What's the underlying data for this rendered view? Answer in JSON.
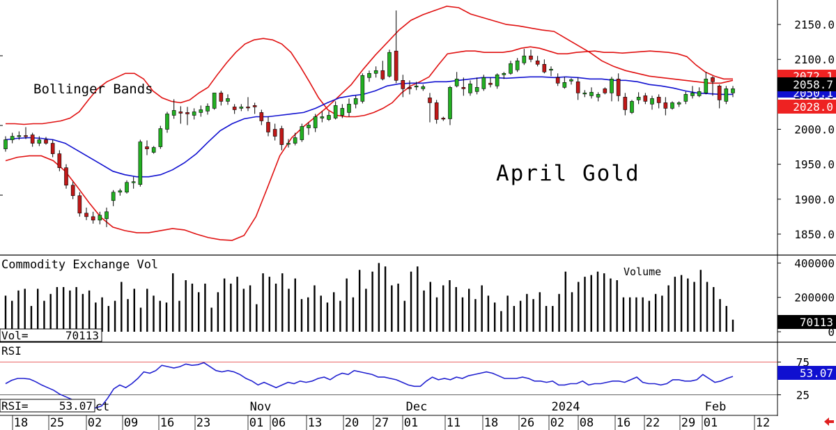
{
  "chart_data": [
    {
      "type": "candlestick",
      "title": "April Gold",
      "subtitle": "Bollinger Bands",
      "ylim": [
        1820,
        2185
      ],
      "y_ticks": [
        "2150.0",
        "2100.0",
        "2050.0",
        "2000.0",
        "1950.0",
        "1900.0",
        "1850.0"
      ],
      "y_tick_values": [
        2150,
        2100,
        2050,
        2000,
        1950,
        1900,
        1850
      ],
      "last_price": "2058.7",
      "upper_band_last": "2072.1",
      "lower_band_last": "2028.0",
      "middle_band_last": "2050.1",
      "colors": {
        "up": "#22b022",
        "down": "#c01818",
        "upper_band": "#e01010",
        "lower_band": "#e01010",
        "middle_band": "#1010d0",
        "flag_red": "#ee2222",
        "flag_black": "#000000"
      },
      "candles": [
        {
          "o": 1972,
          "h": 1990,
          "l": 1968,
          "c": 1985
        },
        {
          "o": 1985,
          "h": 1995,
          "l": 1980,
          "c": 1990
        },
        {
          "o": 1990,
          "h": 1997,
          "l": 1985,
          "c": 1991
        },
        {
          "o": 1991,
          "h": 2003,
          "l": 1986,
          "c": 1990
        },
        {
          "o": 1992,
          "h": 1995,
          "l": 1975,
          "c": 1980
        },
        {
          "o": 1980,
          "h": 1990,
          "l": 1976,
          "c": 1985
        },
        {
          "o": 1985,
          "h": 1989,
          "l": 1978,
          "c": 1980
        },
        {
          "o": 1980,
          "h": 1985,
          "l": 1960,
          "c": 1965
        },
        {
          "o": 1965,
          "h": 1970,
          "l": 1940,
          "c": 1945
        },
        {
          "o": 1945,
          "h": 1950,
          "l": 1915,
          "c": 1920
        },
        {
          "o": 1920,
          "h": 1925,
          "l": 1900,
          "c": 1905
        },
        {
          "o": 1905,
          "h": 1910,
          "l": 1875,
          "c": 1880
        },
        {
          "o": 1880,
          "h": 1888,
          "l": 1870,
          "c": 1875
        },
        {
          "o": 1875,
          "h": 1882,
          "l": 1865,
          "c": 1870
        },
        {
          "o": 1870,
          "h": 1882,
          "l": 1864,
          "c": 1877
        },
        {
          "o": 1872,
          "h": 1888,
          "l": 1860,
          "c": 1882
        },
        {
          "o": 1898,
          "h": 1913,
          "l": 1890,
          "c": 1910
        },
        {
          "o": 1910,
          "h": 1915,
          "l": 1905,
          "c": 1912
        },
        {
          "o": 1910,
          "h": 1927,
          "l": 1908,
          "c": 1924
        },
        {
          "o": 1924,
          "h": 1932,
          "l": 1915,
          "c": 1925
        },
        {
          "o": 1921,
          "h": 1985,
          "l": 1918,
          "c": 1982
        },
        {
          "o": 1975,
          "h": 1984,
          "l": 1963,
          "c": 1972
        },
        {
          "o": 1967,
          "h": 1976,
          "l": 1965,
          "c": 1974
        },
        {
          "o": 1975,
          "h": 2005,
          "l": 1972,
          "c": 2001
        },
        {
          "o": 2000,
          "h": 2025,
          "l": 1995,
          "c": 2022
        },
        {
          "o": 2020,
          "h": 2043,
          "l": 2015,
          "c": 2027
        },
        {
          "o": 2025,
          "h": 2033,
          "l": 2008,
          "c": 2023
        },
        {
          "o": 2024,
          "h": 2032,
          "l": 2006,
          "c": 2022
        },
        {
          "o": 2020,
          "h": 2030,
          "l": 2014,
          "c": 2025
        },
        {
          "o": 2024,
          "h": 2034,
          "l": 2018,
          "c": 2028
        },
        {
          "o": 2026,
          "h": 2037,
          "l": 2021,
          "c": 2033
        },
        {
          "o": 2030,
          "h": 2052,
          "l": 2028,
          "c": 2052
        },
        {
          "o": 2052,
          "h": 2055,
          "l": 2034,
          "c": 2040
        },
        {
          "o": 2040,
          "h": 2050,
          "l": 2035,
          "c": 2044
        },
        {
          "o": 2032,
          "h": 2036,
          "l": 2022,
          "c": 2028
        },
        {
          "o": 2030,
          "h": 2036,
          "l": 2026,
          "c": 2032
        },
        {
          "o": 2032,
          "h": 2046,
          "l": 2026,
          "c": 2031
        },
        {
          "o": 2034,
          "h": 2038,
          "l": 2022,
          "c": 2032
        },
        {
          "o": 2024,
          "h": 2028,
          "l": 2006,
          "c": 2012
        },
        {
          "o": 2010,
          "h": 2018,
          "l": 1990,
          "c": 1996
        },
        {
          "o": 2000,
          "h": 2008,
          "l": 1984,
          "c": 1990
        },
        {
          "o": 2001,
          "h": 2005,
          "l": 1970,
          "c": 1978
        },
        {
          "o": 1980,
          "h": 1986,
          "l": 1974,
          "c": 1980
        },
        {
          "o": 1980,
          "h": 1995,
          "l": 1977,
          "c": 1988
        },
        {
          "o": 1985,
          "h": 2008,
          "l": 1982,
          "c": 2004
        },
        {
          "o": 2002,
          "h": 2010,
          "l": 1992,
          "c": 2006
        },
        {
          "o": 2002,
          "h": 2022,
          "l": 1996,
          "c": 2018
        },
        {
          "o": 2016,
          "h": 2026,
          "l": 2010,
          "c": 2018
        },
        {
          "o": 2014,
          "h": 2026,
          "l": 2012,
          "c": 2020
        },
        {
          "o": 2016,
          "h": 2040,
          "l": 2014,
          "c": 2034
        },
        {
          "o": 2020,
          "h": 2036,
          "l": 2016,
          "c": 2030
        },
        {
          "o": 2024,
          "h": 2044,
          "l": 2018,
          "c": 2036
        },
        {
          "o": 2036,
          "h": 2048,
          "l": 2030,
          "c": 2044
        },
        {
          "o": 2040,
          "h": 2080,
          "l": 2037,
          "c": 2077
        },
        {
          "o": 2074,
          "h": 2084,
          "l": 2068,
          "c": 2080
        },
        {
          "o": 2080,
          "h": 2090,
          "l": 2074,
          "c": 2084
        },
        {
          "o": 2084,
          "h": 2098,
          "l": 2070,
          "c": 2072
        },
        {
          "o": 2076,
          "h": 2114,
          "l": 2074,
          "c": 2110
        },
        {
          "o": 2112,
          "h": 2170,
          "l": 2066,
          "c": 2070
        },
        {
          "o": 2070,
          "h": 2078,
          "l": 2046,
          "c": 2058
        },
        {
          "o": 2060,
          "h": 2070,
          "l": 2050,
          "c": 2058
        },
        {
          "o": 2062,
          "h": 2068,
          "l": 2056,
          "c": 2062
        },
        {
          "o": 2058,
          "h": 2064,
          "l": 2055,
          "c": 2061
        },
        {
          "o": 2045,
          "h": 2052,
          "l": 2010,
          "c": 2038
        },
        {
          "o": 2038,
          "h": 2042,
          "l": 2008,
          "c": 2014
        },
        {
          "o": 2016,
          "h": 2018,
          "l": 2012,
          "c": 2015
        },
        {
          "o": 2015,
          "h": 2062,
          "l": 2006,
          "c": 2060
        },
        {
          "o": 2062,
          "h": 2082,
          "l": 2060,
          "c": 2072
        },
        {
          "o": 2060,
          "h": 2074,
          "l": 2048,
          "c": 2058
        },
        {
          "o": 2052,
          "h": 2070,
          "l": 2048,
          "c": 2065
        },
        {
          "o": 2054,
          "h": 2074,
          "l": 2050,
          "c": 2060
        },
        {
          "o": 2058,
          "h": 2078,
          "l": 2055,
          "c": 2074
        },
        {
          "o": 2066,
          "h": 2074,
          "l": 2060,
          "c": 2064
        },
        {
          "o": 2062,
          "h": 2080,
          "l": 2058,
          "c": 2078
        },
        {
          "o": 2078,
          "h": 2082,
          "l": 2072,
          "c": 2080
        },
        {
          "o": 2080,
          "h": 2098,
          "l": 2078,
          "c": 2094
        },
        {
          "o": 2085,
          "h": 2102,
          "l": 2082,
          "c": 2098
        },
        {
          "o": 2095,
          "h": 2115,
          "l": 2092,
          "c": 2105
        },
        {
          "o": 2105,
          "h": 2114,
          "l": 2096,
          "c": 2100
        },
        {
          "o": 2098,
          "h": 2105,
          "l": 2090,
          "c": 2093
        },
        {
          "o": 2093,
          "h": 2100,
          "l": 2080,
          "c": 2082
        },
        {
          "o": 2085,
          "h": 2090,
          "l": 2076,
          "c": 2086
        },
        {
          "o": 2074,
          "h": 2080,
          "l": 2062,
          "c": 2066
        },
        {
          "o": 2060,
          "h": 2075,
          "l": 2058,
          "c": 2067
        },
        {
          "o": 2069,
          "h": 2073,
          "l": 2064,
          "c": 2071
        },
        {
          "o": 2068,
          "h": 2074,
          "l": 2042,
          "c": 2052
        },
        {
          "o": 2052,
          "h": 2056,
          "l": 2046,
          "c": 2052
        },
        {
          "o": 2048,
          "h": 2060,
          "l": 2044,
          "c": 2053
        },
        {
          "o": 2046,
          "h": 2053,
          "l": 2040,
          "c": 2050
        },
        {
          "o": 2058,
          "h": 2060,
          "l": 2050,
          "c": 2052
        },
        {
          "o": 2052,
          "h": 2075,
          "l": 2040,
          "c": 2072
        },
        {
          "o": 2072,
          "h": 2080,
          "l": 2040,
          "c": 2048
        },
        {
          "o": 2046,
          "h": 2052,
          "l": 2020,
          "c": 2028
        },
        {
          "o": 2024,
          "h": 2042,
          "l": 2022,
          "c": 2040
        },
        {
          "o": 2042,
          "h": 2053,
          "l": 2036,
          "c": 2046
        },
        {
          "o": 2048,
          "h": 2052,
          "l": 2036,
          "c": 2040
        },
        {
          "o": 2036,
          "h": 2048,
          "l": 2028,
          "c": 2044
        },
        {
          "o": 2046,
          "h": 2050,
          "l": 2030,
          "c": 2038
        },
        {
          "o": 2038,
          "h": 2046,
          "l": 2020,
          "c": 2030
        },
        {
          "o": 2030,
          "h": 2040,
          "l": 2028,
          "c": 2038
        },
        {
          "o": 2036,
          "h": 2040,
          "l": 2032,
          "c": 2038
        },
        {
          "o": 2040,
          "h": 2054,
          "l": 2036,
          "c": 2050
        },
        {
          "o": 2048,
          "h": 2062,
          "l": 2044,
          "c": 2052
        },
        {
          "o": 2048,
          "h": 2060,
          "l": 2046,
          "c": 2054
        },
        {
          "o": 2052,
          "h": 2082,
          "l": 2050,
          "c": 2072
        },
        {
          "o": 2074,
          "h": 2076,
          "l": 2048,
          "c": 2068
        },
        {
          "o": 2062,
          "h": 2064,
          "l": 2030,
          "c": 2042
        },
        {
          "o": 2040,
          "h": 2062,
          "l": 2036,
          "c": 2058
        },
        {
          "o": 2052,
          "h": 2062,
          "l": 2046,
          "c": 2058
        }
      ],
      "upper_band": [
        2008,
        2008,
        2007,
        2008,
        2008,
        2010,
        2012,
        2016,
        2025,
        2042,
        2058,
        2068,
        2074,
        2080,
        2080,
        2072,
        2055,
        2045,
        2040,
        2038,
        2042,
        2052,
        2060,
        2078,
        2095,
        2110,
        2122,
        2128,
        2130,
        2128,
        2122,
        2110,
        2090,
        2068,
        2045,
        2028,
        2020,
        2018,
        2018,
        2020,
        2024,
        2030,
        2038,
        2052,
        2062,
        2068,
        2075,
        2092,
        2108,
        2110,
        2112,
        2112,
        2110,
        2110,
        2110,
        2112,
        2116,
        2118,
        2116,
        2112,
        2108,
        2108,
        2110,
        2111,
        2112,
        2110,
        2110,
        2109,
        2110,
        2111,
        2112,
        2111,
        2110,
        2108,
        2104,
        2092,
        2082,
        2076,
        2072,
        2072
      ],
      "middle_band": [
        1985,
        1987,
        1988,
        1987,
        1985,
        1980,
        1970,
        1960,
        1950,
        1940,
        1935,
        1932,
        1932,
        1935,
        1942,
        1952,
        1965,
        1982,
        1998,
        2008,
        2015,
        2018,
        2018,
        2020,
        2022,
        2024,
        2030,
        2038,
        2045,
        2048,
        2050,
        2055,
        2062,
        2065,
        2066,
        2066,
        2068,
        2068,
        2070,
        2072,
        2074,
        2074,
        2073,
        2074,
        2075,
        2075,
        2074,
        2075,
        2074,
        2072,
        2072,
        2070,
        2070,
        2068,
        2064,
        2062,
        2059,
        2055,
        2052,
        2051,
        2050,
        2050
      ],
      "lower_band": [
        1955,
        1960,
        1962,
        1962,
        1955,
        1940,
        1918,
        1895,
        1874,
        1860,
        1855,
        1852,
        1852,
        1855,
        1858,
        1856,
        1850,
        1845,
        1842,
        1841,
        1848,
        1875,
        1918,
        1962,
        1988,
        2004,
        2018,
        2032,
        2048,
        2064,
        2086,
        2106,
        2124,
        2142,
        2156,
        2164,
        2170,
        2176,
        2174,
        2165,
        2160,
        2155,
        2150,
        2148,
        2145,
        2142,
        2140,
        2130,
        2120,
        2110,
        2098,
        2090,
        2084,
        2080,
        2076,
        2074,
        2072,
        2070,
        2068,
        2066,
        2066,
        2070
      ],
      "middle_band_note": ""
    },
    {
      "type": "bar",
      "title": "Commodity Exchange Vol",
      "label": "Volume",
      "y_ticks": [
        "400000",
        "200000",
        "0"
      ],
      "y_tick_values": [
        400000,
        200000,
        0
      ],
      "ylim": [
        0,
        430000
      ],
      "current_label": "Vol=",
      "current_value": "70113",
      "values": [
        210000,
        180000,
        240000,
        250000,
        150000,
        250000,
        180000,
        220000,
        260000,
        260000,
        240000,
        260000,
        220000,
        240000,
        170000,
        200000,
        150000,
        180000,
        290000,
        190000,
        250000,
        140000,
        250000,
        210000,
        180000,
        170000,
        340000,
        180000,
        300000,
        280000,
        230000,
        280000,
        140000,
        230000,
        310000,
        280000,
        320000,
        250000,
        270000,
        160000,
        340000,
        320000,
        280000,
        340000,
        250000,
        310000,
        190000,
        200000,
        270000,
        210000,
        170000,
        230000,
        180000,
        310000,
        200000,
        360000,
        250000,
        350000,
        400000,
        380000,
        270000,
        280000,
        180000,
        350000,
        380000,
        240000,
        290000,
        200000,
        270000,
        300000,
        260000,
        200000,
        250000,
        190000,
        270000,
        210000,
        170000,
        120000,
        210000,
        150000,
        180000,
        220000,
        190000,
        230000,
        150000,
        150000,
        220000,
        350000,
        230000,
        290000,
        320000,
        330000,
        350000,
        340000,
        310000,
        300000,
        200000,
        200000,
        200000,
        200000,
        180000,
        220000,
        210000,
        270000,
        320000,
        330000,
        310000,
        290000,
        360000,
        290000,
        260000,
        190000,
        150000,
        70113
      ],
      "colors": {
        "bar": "#000000",
        "label_bg": "#000000",
        "label_fg": "#ffffff"
      }
    },
    {
      "type": "line",
      "title": "RSI",
      "y_ticks": [
        "75",
        "25"
      ],
      "y_tick_values": [
        75,
        25
      ],
      "ylim": [
        0,
        100
      ],
      "current_label": "RSI=",
      "current_value": "53.07",
      "values": [
        42,
        47,
        50,
        50,
        49,
        45,
        40,
        36,
        32,
        26,
        22,
        18,
        14,
        10,
        7,
        5,
        8,
        20,
        34,
        40,
        36,
        42,
        50,
        60,
        58,
        62,
        70,
        68,
        66,
        68,
        72,
        70,
        71,
        74,
        68,
        62,
        60,
        62,
        60,
        56,
        50,
        46,
        40,
        44,
        40,
        36,
        40,
        44,
        42,
        46,
        44,
        46,
        50,
        52,
        48,
        54,
        58,
        56,
        62,
        60,
        58,
        56,
        52,
        52,
        50,
        48,
        44,
        40,
        38,
        38,
        46,
        52,
        48,
        50,
        48,
        52,
        50,
        54,
        56,
        58,
        60,
        58,
        54,
        50,
        50,
        50,
        52,
        50,
        46,
        46,
        44,
        46,
        40,
        40,
        42,
        42,
        46,
        40,
        42,
        42,
        44,
        46,
        46,
        44,
        48,
        52,
        44,
        42,
        42,
        40,
        42,
        48,
        48,
        46,
        46,
        48,
        56,
        50,
        44,
        46,
        50,
        53.07
      ],
      "colors": {
        "line": "#2020d0",
        "ref75": "#e03030",
        "ref25": "#333333",
        "label_bg": "#1010d0",
        "label_fg": "#ffffff"
      }
    }
  ],
  "x_axis": {
    "day_labels": [
      "18",
      "25",
      "02",
      "09",
      "16",
      "23",
      "01",
      "06",
      "13",
      "20",
      "27",
      "01",
      "11",
      "18",
      "26",
      "02",
      "08",
      "16",
      "22",
      "29",
      "01",
      "12"
    ],
    "month_labels": [
      "ct",
      "Nov",
      "Dec",
      "2024",
      "Feb"
    ]
  }
}
